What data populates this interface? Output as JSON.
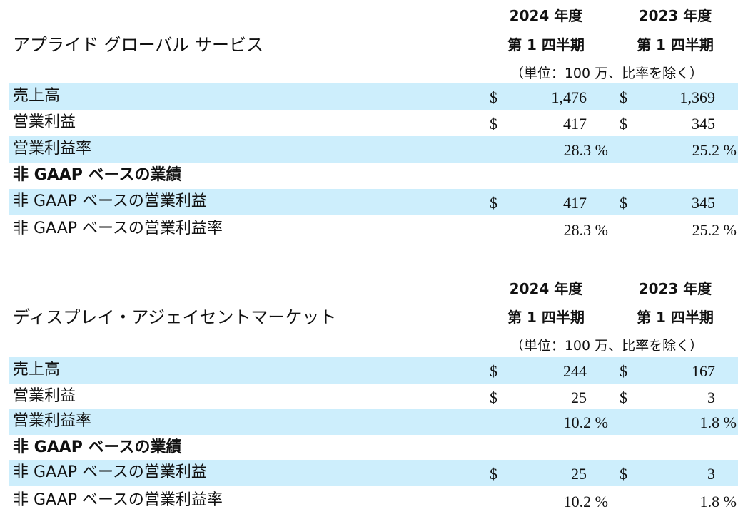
{
  "sections": [
    {
      "title": "アプライド グローバル サービス",
      "col_2024_year": "2024 年度",
      "col_2024_period": "第 1 四半期",
      "col_2023_year": "2023 年度",
      "col_2023_period": "第 1 四半期",
      "units": "（単位：100 万、比率を除く）",
      "rows": [
        {
          "label": "売上高",
          "cur_2024": "$",
          "val_2024": "1,476",
          "cur_2023": "$",
          "val_2023": "1,369"
        },
        {
          "label": "営業利益",
          "cur_2024": "$",
          "val_2024": "417",
          "cur_2023": "$",
          "val_2023": "345"
        },
        {
          "label": "営業利益率",
          "pct_2024": "28.3 %",
          "pct_2023": "25.2 %"
        },
        {
          "label": "非 GAAP ベースの業績"
        },
        {
          "label": "非 GAAP ベースの営業利益",
          "cur_2024": "$",
          "val_2024": "417",
          "cur_2023": "$",
          "val_2023": "345"
        },
        {
          "label": "非 GAAP ベースの営業利益率",
          "pct_2024": "28.3 %",
          "pct_2023": "25.2 %"
        }
      ]
    },
    {
      "title": "ディスプレイ・アジェイセントマーケット",
      "col_2024_year": "2024 年度",
      "col_2024_period": "第 1 四半期",
      "col_2023_year": "2023 年度",
      "col_2023_period": "第 1 四半期",
      "units": "（単位：100 万、比率を除く）",
      "rows": [
        {
          "label": "売上高",
          "cur_2024": "$",
          "val_2024": "244",
          "cur_2023": "$",
          "val_2023": "167"
        },
        {
          "label": "営業利益",
          "cur_2024": "$",
          "val_2024": "25",
          "cur_2023": "$",
          "val_2023": "3"
        },
        {
          "label": "営業利益率",
          "pct_2024": "10.2 %",
          "pct_2023": "1.8 %"
        },
        {
          "label": "非 GAAP ベースの業績"
        },
        {
          "label": "非 GAAP ベースの営業利益",
          "cur_2024": "$",
          "val_2024": "25",
          "cur_2023": "$",
          "val_2023": "3"
        },
        {
          "label": "非 GAAP ベースの営業利益率",
          "pct_2024": "10.2 %",
          "pct_2023": "1.8 %"
        }
      ]
    }
  ]
}
